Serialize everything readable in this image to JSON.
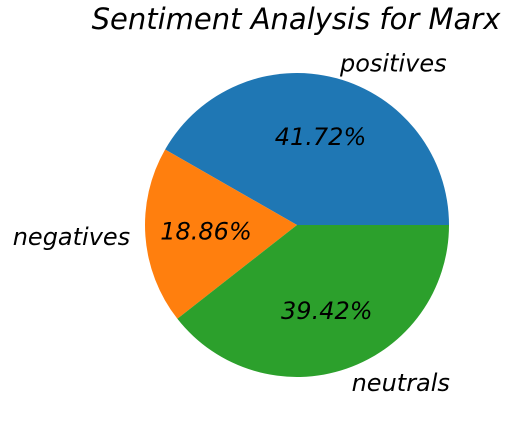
{
  "chart_data": {
    "type": "pie",
    "title": "Sentiment Analysis for Marx",
    "slices": [
      {
        "label": "positives",
        "value": 41.72,
        "pct_text": "41.72%",
        "color": "#1f77b4"
      },
      {
        "label": "negatives",
        "value": 18.86,
        "pct_text": "18.86%",
        "color": "#ff7f0e"
      },
      {
        "label": "neutrals",
        "value": 39.42,
        "pct_text": "39.42%",
        "color": "#2ca02c"
      }
    ],
    "start_angle_deg": 0,
    "direction": "counterclockwise",
    "legend": "none"
  }
}
